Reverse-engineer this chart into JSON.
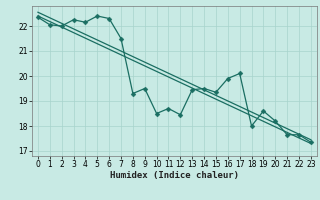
{
  "title": "",
  "xlabel": "Humidex (Indice chaleur)",
  "ylabel": "",
  "bg_color": "#c8eae4",
  "grid_color": "#a8d4cc",
  "line_color": "#1a6e62",
  "xlim": [
    -0.5,
    23.5
  ],
  "ylim": [
    16.8,
    22.8
  ],
  "xticks": [
    0,
    1,
    2,
    3,
    4,
    5,
    6,
    7,
    8,
    9,
    10,
    11,
    12,
    13,
    14,
    15,
    16,
    17,
    18,
    19,
    20,
    21,
    22,
    23
  ],
  "yticks": [
    17,
    18,
    19,
    20,
    21,
    22
  ],
  "jagged_x": [
    0,
    1,
    2,
    3,
    4,
    5,
    6,
    7,
    8,
    9,
    10,
    11,
    12,
    13,
    14,
    15,
    16,
    17,
    18,
    19,
    20,
    21,
    22,
    23
  ],
  "jagged_y": [
    22.35,
    22.05,
    22.0,
    22.25,
    22.15,
    22.4,
    22.3,
    21.5,
    19.3,
    19.5,
    18.5,
    18.7,
    18.45,
    19.45,
    19.5,
    19.35,
    19.9,
    20.1,
    18.0,
    18.6,
    18.2,
    17.65,
    17.65,
    17.35
  ],
  "trend1_x": [
    0,
    23
  ],
  "trend1_y": [
    22.4,
    17.3
  ],
  "trend2_x": [
    0,
    23
  ],
  "trend2_y": [
    22.55,
    17.45
  ],
  "marker_size": 2.5,
  "lw": 0.9,
  "tick_fontsize": 5.5,
  "xlabel_fontsize": 6.5
}
